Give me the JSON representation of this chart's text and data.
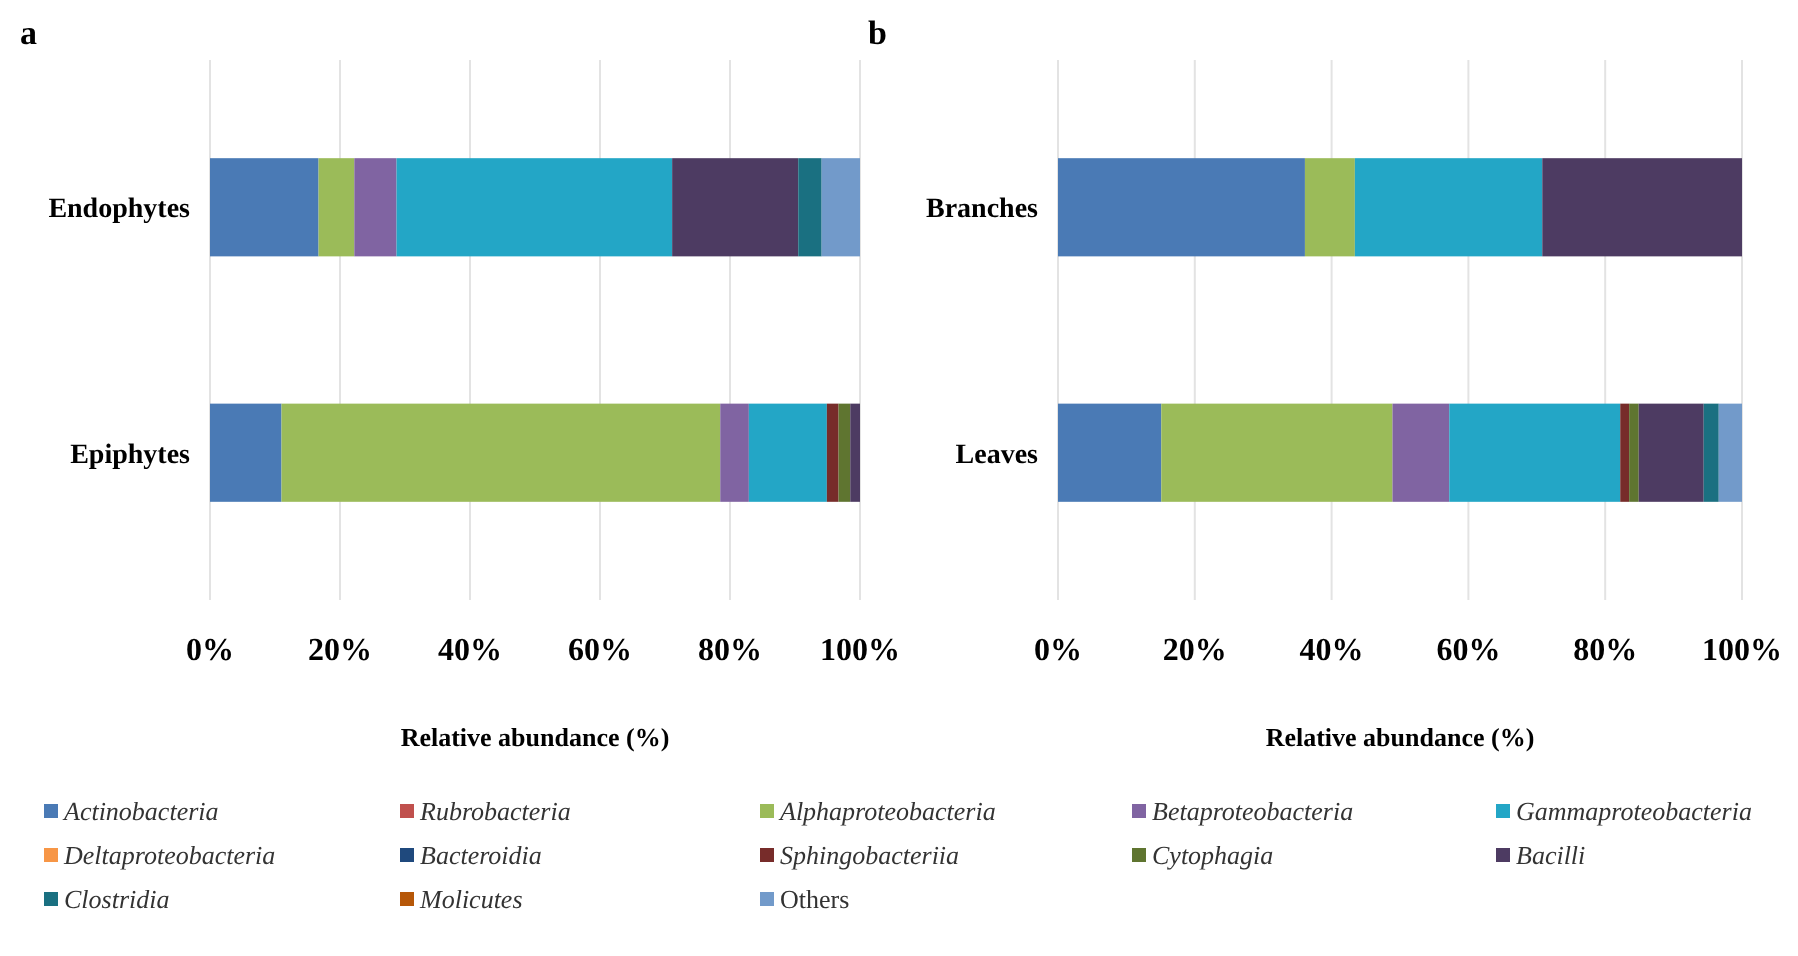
{
  "chart_data": [
    {
      "type": "bar",
      "orientation": "horizontal",
      "stacked": true,
      "title": "a",
      "xlabel": "Relative abundance (%)",
      "categories": [
        "Endophytes",
        "Epiphytes"
      ],
      "xlim": [
        0,
        100
      ],
      "xticks": [
        {
          "value": 0,
          "label": "0%"
        },
        {
          "value": 20,
          "label": "20%"
        },
        {
          "value": 40,
          "label": "40%"
        },
        {
          "value": 60,
          "label": "60%"
        },
        {
          "value": 80,
          "label": "80%"
        },
        {
          "value": 100,
          "label": "100%"
        }
      ],
      "grid": "x",
      "legend": "bottom",
      "series": [
        {
          "name": "Actinobacteria",
          "color": "#4a7ab5",
          "values": [
            16.7,
            11.0
          ]
        },
        {
          "name": "Rubrobacteria",
          "color": "#c0504d",
          "values": [
            null,
            null
          ]
        },
        {
          "name": "Alphaproteobacteria",
          "color": "#9bbb59",
          "values": [
            5.5,
            67.5
          ]
        },
        {
          "name": "Betaproteobacteria",
          "color": "#8064a2",
          "values": [
            6.5,
            4.4
          ]
        },
        {
          "name": "Gammaproteobacteria",
          "color": "#23a6c6",
          "values": [
            42.4,
            12.0
          ]
        },
        {
          "name": "Deltaproteobacteria",
          "color": "#f79646",
          "values": [
            null,
            null
          ]
        },
        {
          "name": "Bacteroidia",
          "color": "#1f497d",
          "values": [
            null,
            null
          ]
        },
        {
          "name": "Sphingobacteriia",
          "color": "#772c2a",
          "values": [
            null,
            1.8
          ]
        },
        {
          "name": "Cytophagia",
          "color": "#5f7530",
          "values": [
            null,
            1.8
          ]
        },
        {
          "name": "Bacilli",
          "color": "#4d3b62",
          "values": [
            19.4,
            1.5
          ]
        },
        {
          "name": "Clostridia",
          "color": "#1a7081",
          "values": [
            3.6,
            null
          ]
        },
        {
          "name": "Molicutes",
          "color": "#b65708",
          "values": [
            null,
            null
          ]
        },
        {
          "name": "Others",
          "color": "#729aca",
          "values": [
            5.9,
            null
          ]
        }
      ]
    },
    {
      "type": "bar",
      "orientation": "horizontal",
      "stacked": true,
      "title": "b",
      "xlabel": "Relative abundance (%)",
      "categories": [
        "Branches",
        "Leaves"
      ],
      "xlim": [
        0,
        100
      ],
      "xticks": [
        {
          "value": 0,
          "label": "0%"
        },
        {
          "value": 20,
          "label": "20%"
        },
        {
          "value": 40,
          "label": "40%"
        },
        {
          "value": 60,
          "label": "60%"
        },
        {
          "value": 80,
          "label": "80%"
        },
        {
          "value": 100,
          "label": "100%"
        }
      ],
      "grid": "x",
      "legend": "bottom",
      "series": [
        {
          "name": "Actinobacteria",
          "color": "#4a7ab5",
          "values": [
            36.1,
            15.1
          ]
        },
        {
          "name": "Alphaproteobacteria",
          "color": "#9bbb59",
          "values": [
            7.3,
            33.8
          ]
        },
        {
          "name": "Betaproteobacteria",
          "color": "#8064a2",
          "values": [
            null,
            8.3
          ]
        },
        {
          "name": "Gammaproteobacteria",
          "color": "#23a6c6",
          "values": [
            27.4,
            25.0
          ]
        },
        {
          "name": "Sphingobacteriia",
          "color": "#772c2a",
          "values": [
            null,
            1.3
          ]
        },
        {
          "name": "Cytophagia",
          "color": "#5f7530",
          "values": [
            null,
            1.4
          ]
        },
        {
          "name": "Bacilli",
          "color": "#4d3b62",
          "values": [
            29.2,
            9.5
          ]
        },
        {
          "name": "Clostridia",
          "color": "#1a7081",
          "values": [
            null,
            2.2
          ]
        },
        {
          "name": "Others",
          "color": "#729aca",
          "values": [
            null,
            3.4
          ]
        }
      ]
    }
  ]
}
